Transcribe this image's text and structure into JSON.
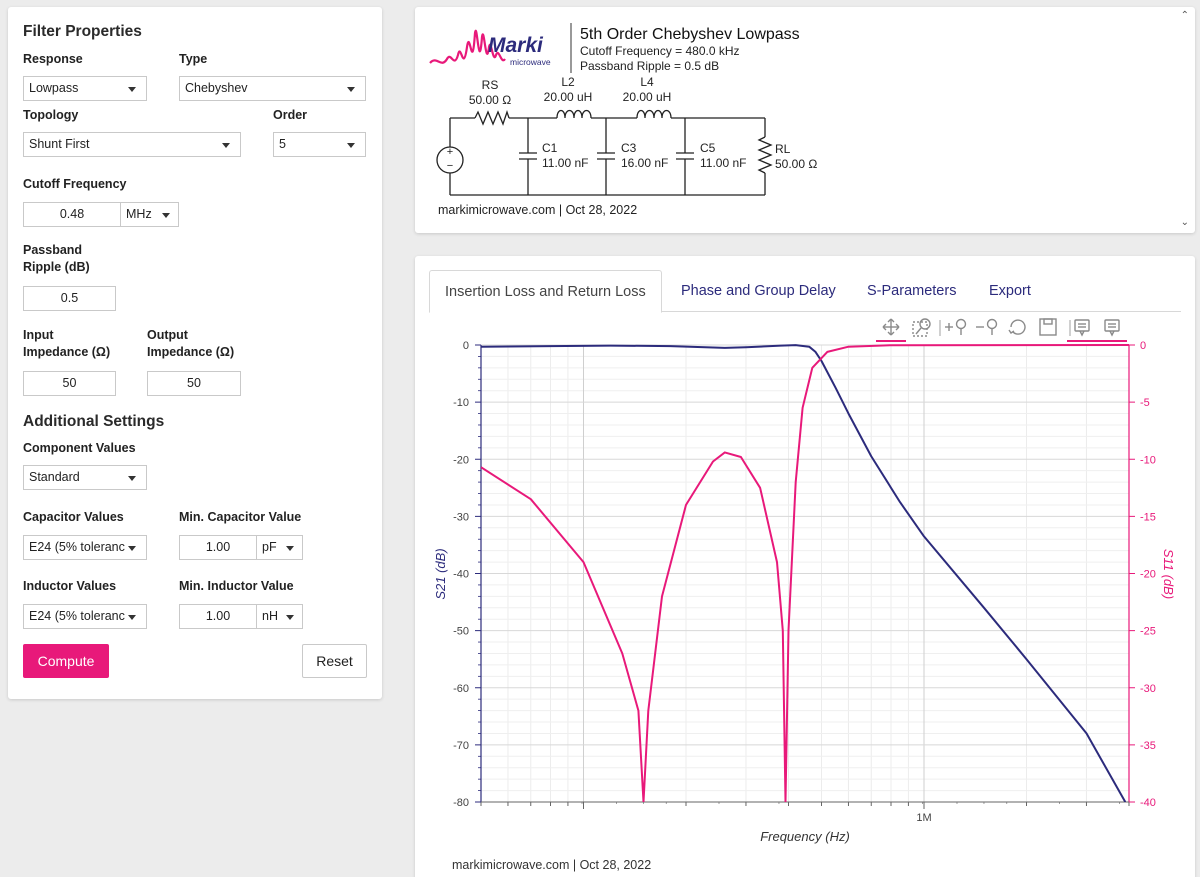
{
  "filter_properties": {
    "title": "Filter Properties",
    "response_label": "Response",
    "response_value": "Lowpass",
    "type_label": "Type",
    "type_value": "Chebyshev",
    "topology_label": "Topology",
    "topology_value": "Shunt First",
    "order_label": "Order",
    "order_value": "5",
    "cutoff_label": "Cutoff Frequency",
    "cutoff_value": "0.48",
    "cutoff_unit": "MHz",
    "ripple_label_1": "Passband",
    "ripple_label_2": "Ripple (dB)",
    "ripple_value": "0.5",
    "input_imp_label_1": "Input",
    "input_imp_label_2": "Impedance (Ω)",
    "input_imp_value": "50",
    "output_imp_label_1": "Output",
    "output_imp_label_2": "Impedance (Ω)",
    "output_imp_value": "50"
  },
  "additional_settings": {
    "title": "Additional Settings",
    "component_values_label": "Component Values",
    "component_values_value": "Standard",
    "capacitor_values_label": "Capacitor Values",
    "capacitor_values_value": "E24 (5% toleranc",
    "min_cap_label": "Min. Capacitor Value",
    "min_cap_value": "1.00",
    "min_cap_unit": "pF",
    "inductor_values_label": "Inductor Values",
    "inductor_values_value": "E24 (5% toleranc",
    "min_ind_label": "Min. Inductor Value",
    "min_ind_value": "1.00",
    "min_ind_unit": "nH"
  },
  "actions": {
    "compute": "Compute",
    "reset": "Reset"
  },
  "schematic": {
    "logo_text": "Marki",
    "logo_sub": "microwave",
    "title": "5th Order Chebyshev Lowpass",
    "cutoff": "Cutoff Frequency = 480.0 kHz",
    "ripple": "Passband Ripple = 0.5 dB",
    "components": [
      {
        "name": "RS",
        "value": "50.00 Ω"
      },
      {
        "name": "L2",
        "value": "20.00 uH"
      },
      {
        "name": "L4",
        "value": "20.00 uH"
      },
      {
        "name": "C1",
        "value": "11.00 nF"
      },
      {
        "name": "C3",
        "value": "16.00 nF"
      },
      {
        "name": "C5",
        "value": "11.00 nF"
      },
      {
        "name": "RL",
        "value": "50.00 Ω"
      }
    ],
    "source_sign_plus": "+",
    "source_sign_minus": "−",
    "footer": "markimicrowave.com | Oct 28, 2022"
  },
  "tabs": [
    "Insertion Loss and Return Loss",
    "Phase and Group Delay",
    "S-Parameters",
    "Export"
  ],
  "toolbar_icons": [
    "pan-icon",
    "box-zoom-icon",
    "zoom-in-icon",
    "zoom-out-icon",
    "reset-icon",
    "save-icon",
    "hover-s21-icon",
    "hover-s11-icon"
  ],
  "chart_footer": "markimicrowave.com  |  Oct 28, 2022",
  "colors": {
    "accent": "#e8197a",
    "s21": "#2c2b7c",
    "s11": "#e8197a"
  },
  "chart_data": {
    "type": "line",
    "xlabel": "Frequency (Hz)",
    "ylabel_left": "S21 (dB)",
    "ylabel_right": "S11 (dB)",
    "x_scale": "log",
    "xlim": [
      50000,
      4000000
    ],
    "ylim_left": [
      -80,
      0
    ],
    "ylim_right": [
      -40,
      0
    ],
    "yticks_left": [
      0,
      -10,
      -20,
      -30,
      -40,
      -50,
      -60,
      -70,
      -80
    ],
    "yticks_right": [
      0,
      -5,
      -10,
      -15,
      -20,
      -25,
      -30,
      -35,
      -40
    ],
    "xtick_labels": [
      {
        "x": 1000000,
        "label": "1M"
      }
    ],
    "grid": true,
    "series": [
      {
        "name": "S21",
        "axis": "left",
        "points": [
          [
            50000,
            -0.3
          ],
          [
            80000,
            -0.2
          ],
          [
            120000,
            -0.1
          ],
          [
            180000,
            -0.2
          ],
          [
            260000,
            -0.5
          ],
          [
            300000,
            -0.4
          ],
          [
            380000,
            -0.1
          ],
          [
            420000,
            -0.01
          ],
          [
            460000,
            -0.3
          ],
          [
            480000,
            -1.2
          ],
          [
            500000,
            -2.8
          ],
          [
            550000,
            -7.5
          ],
          [
            600000,
            -12
          ],
          [
            700000,
            -19.5
          ],
          [
            850000,
            -27.5
          ],
          [
            1000000,
            -33.5
          ],
          [
            1500000,
            -46
          ],
          [
            2000000,
            -55
          ],
          [
            3000000,
            -68
          ],
          [
            3900000,
            -80
          ]
        ]
      },
      {
        "name": "S11",
        "axis": "right",
        "points": [
          [
            50000,
            -10.7
          ],
          [
            70000,
            -13.5
          ],
          [
            100000,
            -19
          ],
          [
            130000,
            -27
          ],
          [
            145000,
            -32
          ],
          [
            150000,
            -40
          ],
          [
            155000,
            -32
          ],
          [
            170000,
            -22
          ],
          [
            200000,
            -14
          ],
          [
            240000,
            -10.2
          ],
          [
            260000,
            -9.4
          ],
          [
            290000,
            -9.8
          ],
          [
            330000,
            -12.5
          ],
          [
            370000,
            -19
          ],
          [
            385000,
            -25
          ],
          [
            392000,
            -40
          ],
          [
            400000,
            -25
          ],
          [
            420000,
            -12
          ],
          [
            440000,
            -5.5
          ],
          [
            470000,
            -2
          ],
          [
            520000,
            -0.6
          ],
          [
            600000,
            -0.15
          ],
          [
            800000,
            -0.02
          ],
          [
            4000000,
            0
          ]
        ]
      }
    ]
  }
}
